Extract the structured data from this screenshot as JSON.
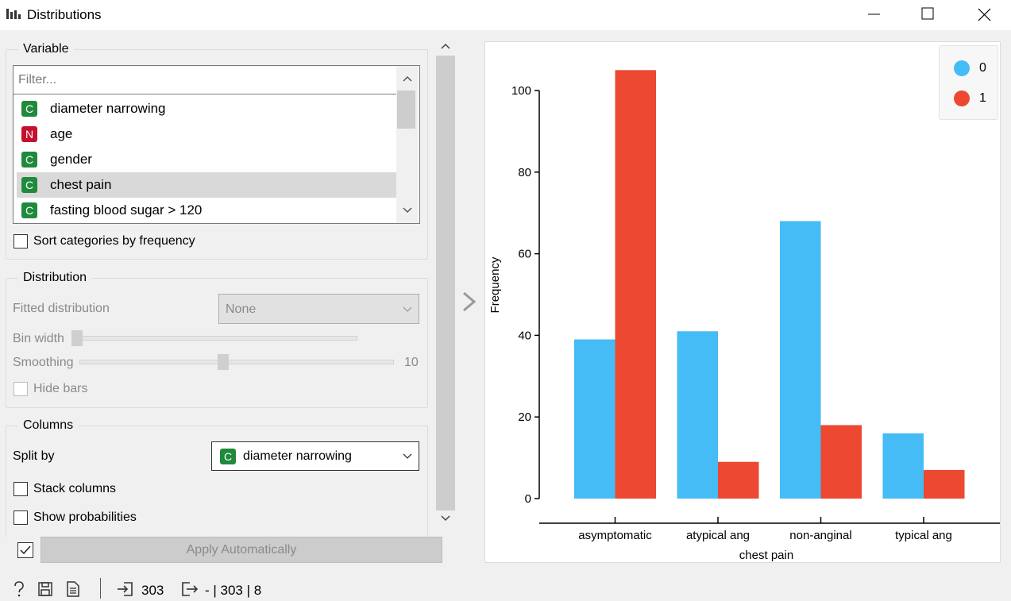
{
  "window": {
    "title": "Distributions",
    "app_icon": "bar-chart-icon",
    "controls": [
      "minimize-icon",
      "maximize-icon",
      "close-icon"
    ]
  },
  "variable": {
    "title": "Variable",
    "filter_placeholder": "Filter...",
    "items": [
      {
        "type": "C",
        "label": "diameter narrowing",
        "selected": false
      },
      {
        "type": "N",
        "label": "age",
        "selected": false
      },
      {
        "type": "C",
        "label": "gender",
        "selected": false
      },
      {
        "type": "C",
        "label": "chest pain",
        "selected": true
      },
      {
        "type": "C",
        "label": "fasting blood sugar > 120",
        "selected": false
      }
    ],
    "sort_label": "Sort categories by frequency",
    "sort_checked": false
  },
  "distribution": {
    "title": "Distribution",
    "fitted_label": "Fitted distribution",
    "fitted_value": "None",
    "bin_width_label": "Bin width",
    "bin_width_level": 0.0,
    "smoothing_label": "Smoothing",
    "smoothing_value": "10",
    "smoothing_level": 0.44,
    "hide_bars_label": "Hide bars",
    "hide_bars_checked": false
  },
  "columns": {
    "title": "Columns",
    "split_label": "Split by",
    "split_value": "diameter narrowing",
    "split_type": "C",
    "stack_label": "Stack columns",
    "stack_checked": false,
    "prob_label": "Show probabilities",
    "prob_checked": false
  },
  "apply": {
    "checked": true,
    "label": "Apply Automatically"
  },
  "status_bar": {
    "input_count": "303",
    "output_text": "- | 303 | 8",
    "icons": [
      "help-icon",
      "save-icon",
      "report-icon",
      "input-icon",
      "output-icon"
    ]
  },
  "colors": {
    "series_0": "#45bcf5",
    "series_1": "#ec4832",
    "badge_C": "#1f8a3c",
    "badge_N": "#c6102e"
  },
  "chart_data": {
    "type": "bar",
    "categories": [
      "asymptomatic",
      "atypical ang",
      "non-anginal",
      "typical ang"
    ],
    "series": [
      {
        "name": "0",
        "values": [
          39,
          41,
          68,
          16
        ]
      },
      {
        "name": "1",
        "values": [
          105,
          9,
          18,
          7
        ]
      }
    ],
    "xlabel": "chest pain",
    "ylabel": "Frequency",
    "ylim": [
      0,
      105
    ],
    "yticks": [
      "0",
      "20",
      "40",
      "60",
      "80",
      "100"
    ],
    "grid": false,
    "legend": "top-right"
  }
}
